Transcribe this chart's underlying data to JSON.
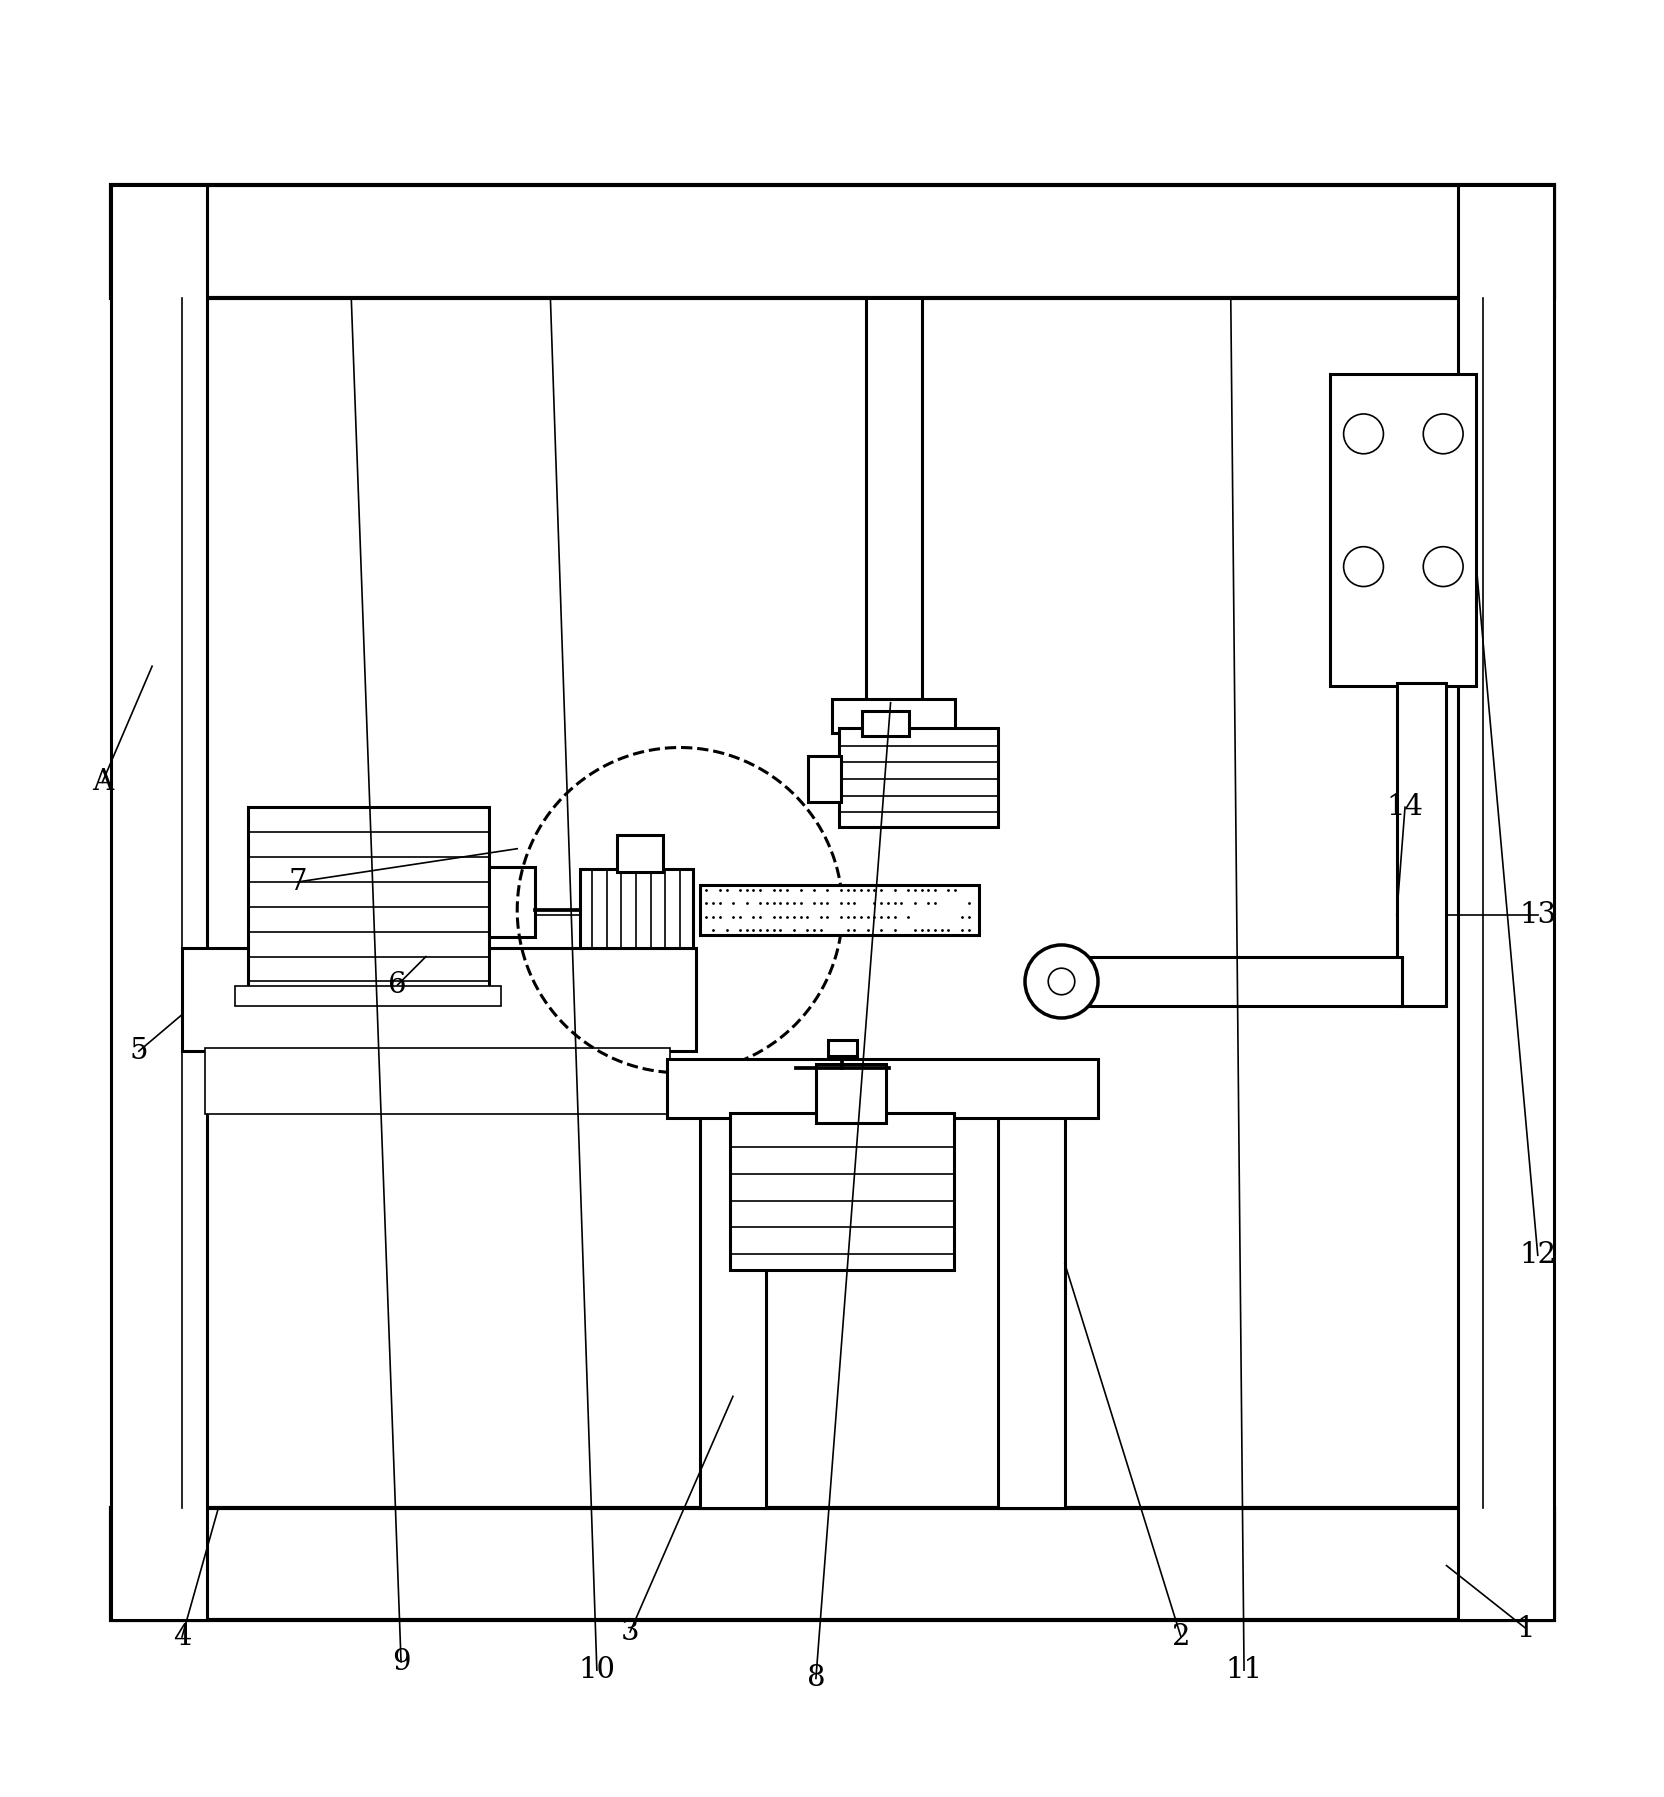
{
  "bg_color": "#ffffff",
  "lc": "#000000",
  "lw": 2.2,
  "lw_thin": 1.2,
  "lw_thick": 3.0,
  "fig_w": 16.65,
  "fig_h": 17.97
}
